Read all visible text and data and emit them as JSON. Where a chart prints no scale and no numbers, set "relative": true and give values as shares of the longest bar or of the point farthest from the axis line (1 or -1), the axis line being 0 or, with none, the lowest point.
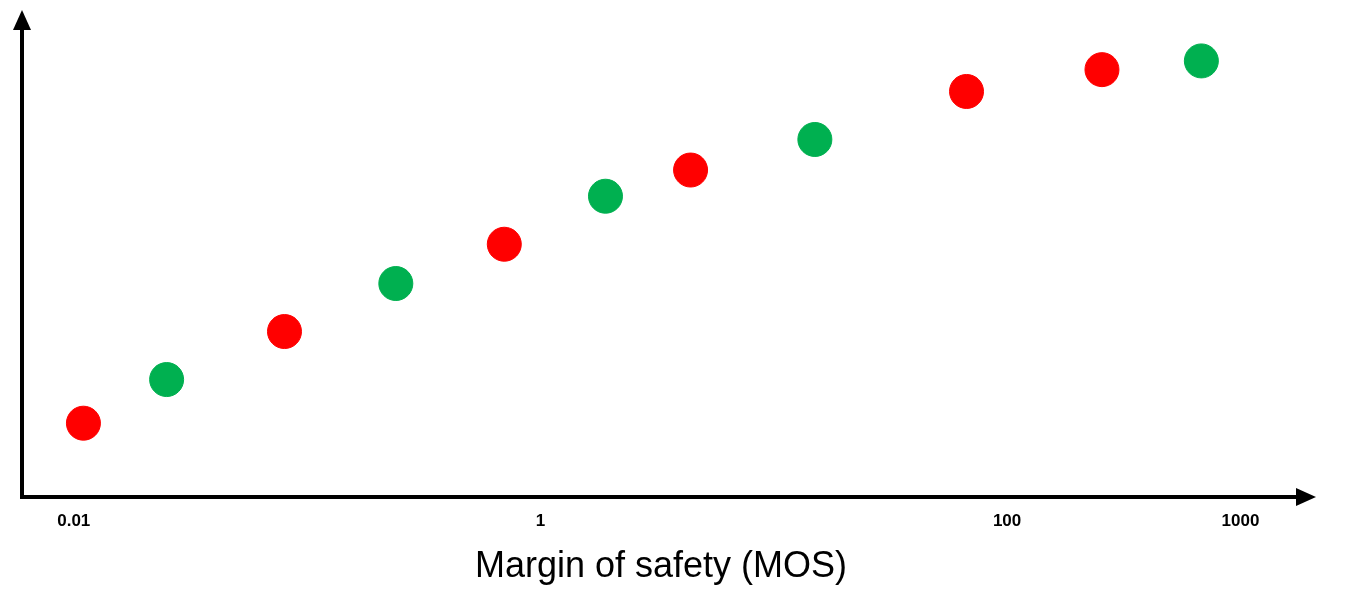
{
  "chart_data": {
    "type": "scatter",
    "xlabel": "Margin of safety (MOS)",
    "log": "x",
    "relative": true,
    "grid": false,
    "legend": false,
    "marker": "circle",
    "xlim": [
      0.006,
      1800
    ],
    "xticks": [
      0.01,
      1,
      100,
      1000
    ],
    "x": [
      0.011,
      0.025,
      0.08,
      0.24,
      0.7,
      1.9,
      4.4,
      15,
      67,
      255,
      680
    ],
    "values": [
      0.17,
      0.27,
      0.38,
      0.49,
      0.58,
      0.69,
      0.75,
      0.82,
      0.93,
      0.98,
      1
    ],
    "colors": [
      "#ff0000",
      "#00b050",
      "#ff0000",
      "#00b050",
      "#ff0000",
      "#00b050",
      "#ff0000",
      "#00b050",
      "#ff0000",
      "#ff0000",
      "#00b050"
    ]
  }
}
